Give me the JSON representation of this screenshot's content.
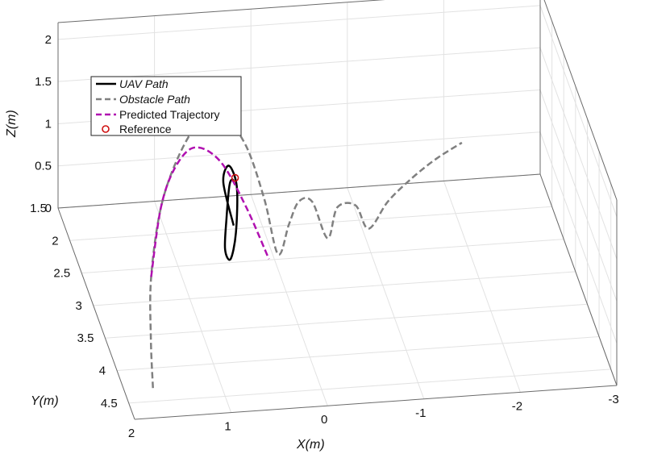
{
  "chart_data": {
    "type": "line",
    "projection": "3d",
    "xlabel": "X(m)",
    "ylabel": "Y(m)",
    "zlabel": "Z(m)",
    "x_ticks": [
      "2",
      "1",
      "0",
      "-1",
      "-2",
      "-3"
    ],
    "y_ticks": [
      "1.5",
      "2",
      "2.5",
      "3",
      "3.5",
      "4",
      "4.5"
    ],
    "z_ticks": [
      "0",
      "0.5",
      "1",
      "1.5",
      "2"
    ],
    "xlim": [
      2,
      -3
    ],
    "ylim": [
      1.5,
      4.75
    ],
    "zlim": [
      0,
      2.2
    ],
    "grid": true,
    "legend_position": "top-left",
    "series": [
      {
        "name": "UAV Path",
        "style": "solid",
        "color": "#000000",
        "points": [
          [
            0.35,
            2.2,
            0.2
          ],
          [
            0.42,
            2.05,
            0.6
          ],
          [
            0.38,
            2.12,
            0.85
          ],
          [
            0.33,
            2.25,
            0.7
          ],
          [
            0.4,
            2.5,
            0.35
          ],
          [
            0.48,
            2.6,
            0.12
          ],
          [
            0.5,
            2.45,
            0.12
          ],
          [
            0.45,
            2.3,
            0.35
          ],
          [
            0.38,
            2.15,
            0.65
          ],
          [
            0.35,
            2.2,
            0.75
          ]
        ]
      },
      {
        "name": "Obstacle Path",
        "style": "dashed",
        "color": "#808080",
        "points": [
          [
            1.7,
            4.3,
            0.0
          ],
          [
            1.6,
            3.8,
            0.2
          ],
          [
            1.45,
            3.2,
            0.45
          ],
          [
            1.2,
            2.6,
            0.8
          ],
          [
            0.9,
            2.15,
            1.05
          ],
          [
            0.6,
            1.85,
            1.2
          ],
          [
            0.35,
            1.75,
            1.15
          ],
          [
            0.15,
            1.9,
            0.9
          ],
          [
            0.02,
            2.15,
            0.45
          ],
          [
            -0.05,
            2.45,
            0.02
          ],
          [
            -0.2,
            2.3,
            0.25
          ],
          [
            -0.35,
            2.1,
            0.35
          ],
          [
            -0.5,
            2.05,
            0.3
          ],
          [
            -0.6,
            2.3,
            0.05
          ],
          [
            -0.75,
            2.1,
            0.25
          ],
          [
            -0.95,
            2.05,
            0.22
          ],
          [
            -1.05,
            2.2,
            0.05
          ],
          [
            -1.3,
            2.0,
            0.2
          ],
          [
            -1.6,
            1.8,
            0.3
          ],
          [
            -1.9,
            1.6,
            0.35
          ],
          [
            -2.2,
            1.45,
            0.4
          ]
        ]
      },
      {
        "name": "Predicted Trajectory",
        "style": "dashed",
        "color": "#b010b0",
        "points": [
          [
            1.45,
            3.2,
            0.45
          ],
          [
            1.2,
            2.6,
            0.8
          ],
          [
            0.95,
            2.2,
            0.95
          ],
          [
            0.7,
            2.0,
            1.0
          ],
          [
            0.45,
            2.05,
            0.85
          ],
          [
            0.25,
            2.3,
            0.5
          ],
          [
            0.07,
            2.55,
            0.05
          ]
        ]
      },
      {
        "name": "Reference",
        "style": "marker",
        "marker": "circle",
        "color": "#d01010",
        "points": [
          [
            0.34,
            2.22,
            0.78
          ]
        ]
      }
    ]
  }
}
